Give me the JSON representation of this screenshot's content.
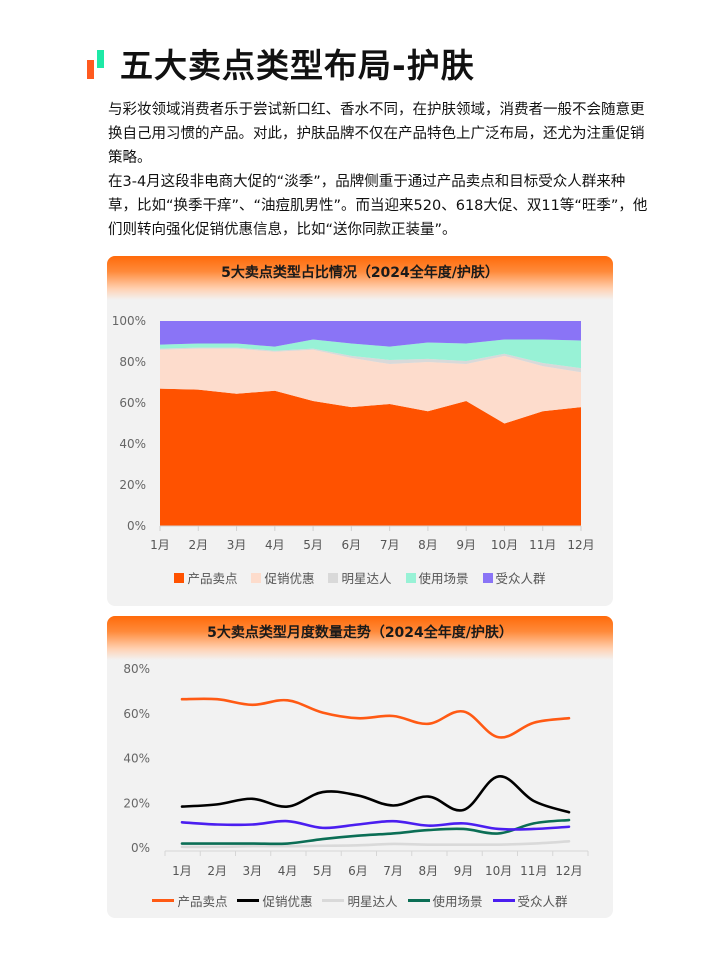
{
  "header": {
    "title": "五大卖点类型布局-护肤",
    "icon": "two-bar-accent-icon",
    "icon_colors": [
      "#ff5a1f",
      "#1de9a6"
    ]
  },
  "intro": {
    "paragraphs": [
      "与彩妆领域消费者乐于尝试新口红、香水不同，在护肤领域，消费者一般不会随意更换自己用习惯的产品。对此，护肤品牌不仅在产品特色上广泛布局，还尤为注重促销策略。",
      "在3-4月这段非电商大促的“淡季”，品牌侧重于通过产品卖点和目标受众人群来种草，比如“换季干痒”、“油痘肌男性”。而当迎来520、618大促、双11等“旺季”，他们则转向强化促销优惠信息，比如“送你同款正装量”。"
    ]
  },
  "chart_data": [
    {
      "type": "area",
      "stacked": true,
      "normalized": true,
      "title": "5大卖点类型占比情况（2024全年度/护肤）",
      "xlabel": "",
      "ylabel": "",
      "categories": [
        "1月",
        "2月",
        "3月",
        "4月",
        "5月",
        "6月",
        "7月",
        "8月",
        "9月",
        "10月",
        "11月",
        "12月"
      ],
      "yticks": [
        "0%",
        "20%",
        "40%",
        "60%",
        "80%",
        "100%"
      ],
      "ylim": [
        0,
        100
      ],
      "legend_position": "bottom",
      "grid": false,
      "series": [
        {
          "name": "产品卖点",
          "color": "#ff5200",
          "values": [
            67,
            66.5,
            64.5,
            66,
            61,
            58,
            59.5,
            56,
            61,
            50,
            56,
            58
          ]
        },
        {
          "name": "促销优惠",
          "color": "#fddccc",
          "values": [
            19,
            20,
            22,
            19,
            25,
            24,
            19.5,
            24,
            18,
            33,
            22,
            17
          ]
        },
        {
          "name": "明星达人",
          "color": "#d9d9d9",
          "values": [
            0.5,
            0.5,
            0.5,
            0.5,
            0.5,
            1,
            2,
            1.5,
            1.5,
            1,
            1.5,
            2
          ]
        },
        {
          "name": "使用场景",
          "color": "#98f2d6",
          "values": [
            2,
            2,
            2,
            2,
            4.5,
            6,
            6.5,
            8,
            8.5,
            7,
            11.5,
            13.5
          ]
        },
        {
          "name": "受众人群",
          "color": "#8a74f6",
          "values": [
            11.5,
            11,
            11,
            12.5,
            9,
            11,
            12.5,
            10.5,
            11,
            9,
            9,
            9.5
          ]
        }
      ]
    },
    {
      "type": "line",
      "smooth": true,
      "title": "5大卖点类型月度数量走势（2024全年度/护肤）",
      "xlabel": "",
      "ylabel": "",
      "categories": [
        "1月",
        "2月",
        "3月",
        "4月",
        "5月",
        "6月",
        "7月",
        "8月",
        "9月",
        "10月",
        "11月",
        "12月"
      ],
      "yticks": [
        "0%",
        "20%",
        "40%",
        "60%",
        "80%"
      ],
      "ylim": [
        0,
        80
      ],
      "legend_position": "bottom",
      "grid": false,
      "series": [
        {
          "name": "产品卖点",
          "color": "#ff5a14",
          "values": [
            66.5,
            66.5,
            64,
            66,
            60.5,
            58,
            59,
            55.5,
            61,
            49.5,
            56,
            58
          ]
        },
        {
          "name": "促销优惠",
          "color": "#000000",
          "values": [
            18.5,
            19.5,
            22,
            18.5,
            25,
            23.5,
            19,
            23,
            17,
            32,
            21,
            16
          ]
        },
        {
          "name": "明星达人",
          "color": "#d9d9d9",
          "values": [
            0.5,
            0.5,
            0.8,
            0.8,
            1,
            1.2,
            1.8,
            1.5,
            1.5,
            1.5,
            2,
            3
          ]
        },
        {
          "name": "使用场景",
          "color": "#0b6e55",
          "values": [
            2,
            2,
            2,
            2,
            4,
            5.5,
            6.5,
            8,
            8.5,
            6.5,
            11,
            12.5
          ]
        },
        {
          "name": "受众人群",
          "color": "#4b1ef0",
          "values": [
            11.5,
            10.5,
            10.5,
            12,
            9,
            10.5,
            12,
            10,
            11,
            8.5,
            8.5,
            9.5
          ]
        }
      ]
    }
  ]
}
